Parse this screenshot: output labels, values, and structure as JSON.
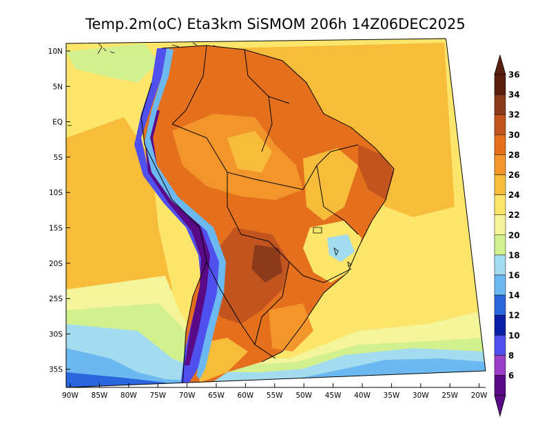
{
  "title": "Temp.2m(oC) Eta3km SiSMOM 206h 14Z06DEC2025",
  "lat_labels": [
    "10N",
    "5N",
    "EQ",
    "5S",
    "10S",
    "15S",
    "20S",
    "25S",
    "30S",
    "35S"
  ],
  "lon_labels": [
    "90W",
    "85W",
    "80W",
    "75W",
    "70W",
    "65W",
    "60W",
    "55W",
    "50W",
    "45W",
    "40W",
    "35W",
    "30W",
    "25W",
    "20W"
  ],
  "colorbar": {
    "labels": [
      "36",
      "34",
      "32",
      "30",
      "28",
      "26",
      "24",
      "22",
      "20",
      "18",
      "16",
      "14",
      "12",
      "10",
      "8",
      "6"
    ],
    "colors": [
      "#5a1e0f",
      "#8b3a1a",
      "#c2541e",
      "#e46f1d",
      "#f2952a",
      "#f7bd3a",
      "#fbe66b",
      "#f4f59a",
      "#d3f08f",
      "#a3dcef",
      "#6cb8f0",
      "#2a67de",
      "#0b1fa6",
      "#5050ee",
      "#9a40c8",
      "#5b0a87"
    ],
    "top_color": "#5a1e0f",
    "bottom_color": "#5b0a87"
  }
}
